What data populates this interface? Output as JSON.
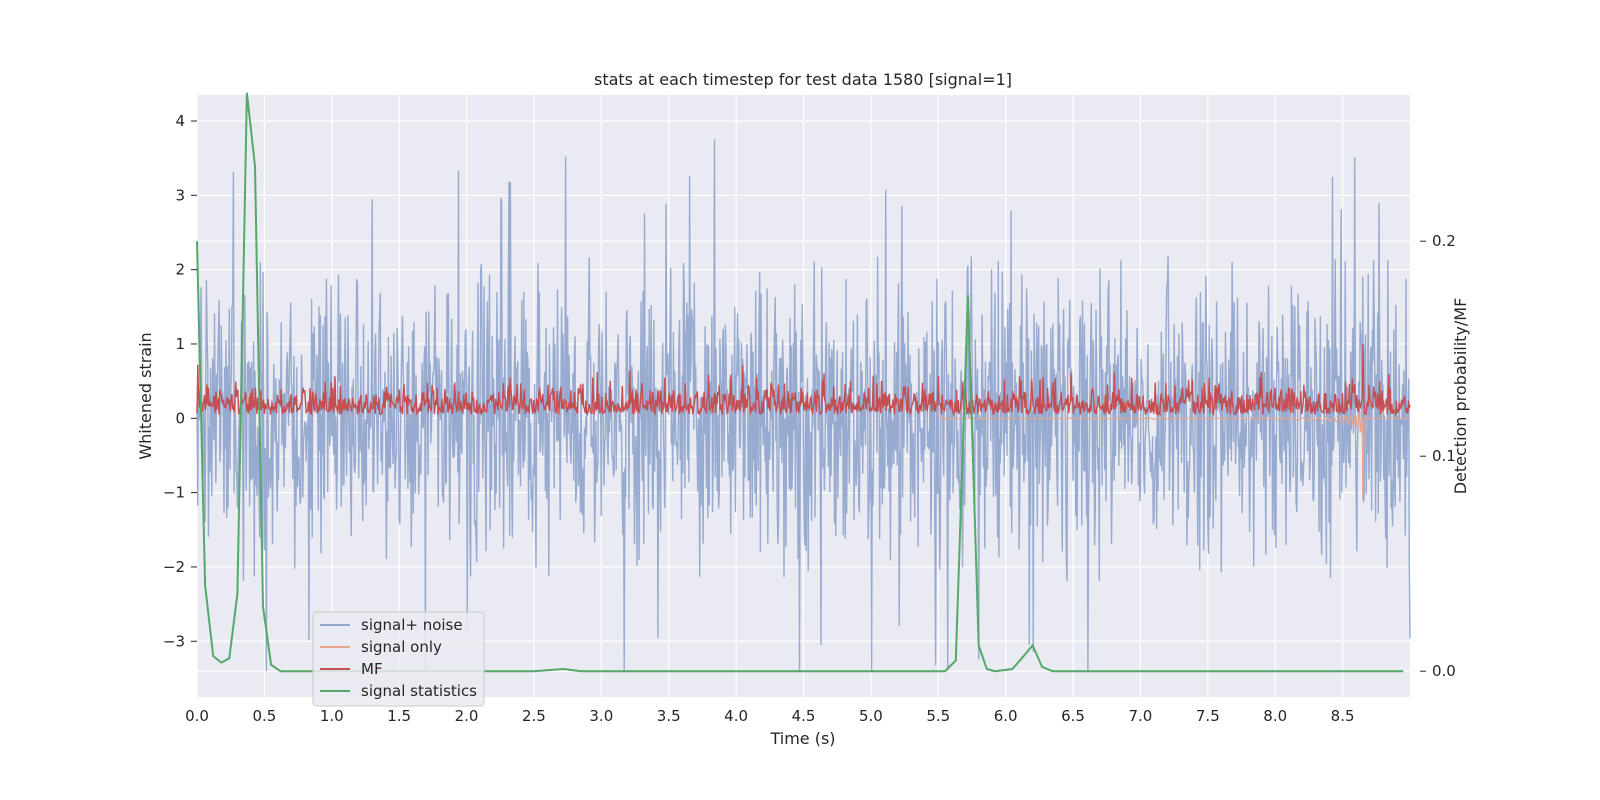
{
  "chart_data": {
    "type": "line",
    "title": "stats at each timestep for test data 1580 [signal=1]",
    "xlabel": "Time (s)",
    "ylabel": "Whitened strain",
    "y2label": "Detection probability/MF",
    "xlim": [
      0.0,
      9.0
    ],
    "ylim": [
      -3.75,
      4.35
    ],
    "y2lim": [
      -0.012,
      0.268
    ],
    "x_ticks": [
      "0.0",
      "0.5",
      "1.0",
      "1.5",
      "2.0",
      "2.5",
      "3.0",
      "3.5",
      "4.0",
      "4.5",
      "5.0",
      "5.5",
      "6.0",
      "6.5",
      "7.0",
      "7.5",
      "8.0",
      "8.5"
    ],
    "y_ticks": [
      "4",
      "3",
      "2",
      "1",
      "0",
      "−1",
      "−2",
      "−3"
    ],
    "y2_ticks": [
      "0.2",
      "0.1",
      "0.0"
    ],
    "legend_position": "lower-left",
    "series": [
      {
        "name": "signal+ noise",
        "color": "#92a6ce",
        "description_range": [
          -3.4,
          4.0
        ]
      },
      {
        "name": "signal only",
        "color": "#e8a58a"
      },
      {
        "name": "MF",
        "color": "#c44e52"
      },
      {
        "name": "signal statistics",
        "color": "#55a868",
        "axis": "right",
        "x": [
          0.0,
          0.06,
          0.12,
          0.18,
          0.24,
          0.3,
          0.37,
          0.43,
          0.49,
          0.55,
          0.62,
          1.0,
          2.0,
          2.5,
          2.72,
          2.85,
          3.0,
          4.0,
          5.0,
          5.55,
          5.63,
          5.72,
          5.8,
          5.86,
          5.92,
          6.05,
          6.12,
          6.2,
          6.27,
          6.35,
          7.0,
          8.0,
          8.95
        ],
        "y": [
          0.2,
          0.04,
          0.007,
          0.004,
          0.006,
          0.036,
          0.269,
          0.235,
          0.03,
          0.003,
          0.0,
          0.0,
          0.0,
          0.0,
          0.001,
          0.0,
          0.0,
          0.0,
          0.0,
          0.0,
          0.005,
          0.175,
          0.012,
          0.001,
          0.0,
          0.001,
          0.006,
          0.012,
          0.002,
          0.0,
          0.0,
          0.0,
          0.0
        ]
      }
    ],
    "signal_only_chirp_end": 8.65,
    "signal_only_peak_min": -1.1
  }
}
